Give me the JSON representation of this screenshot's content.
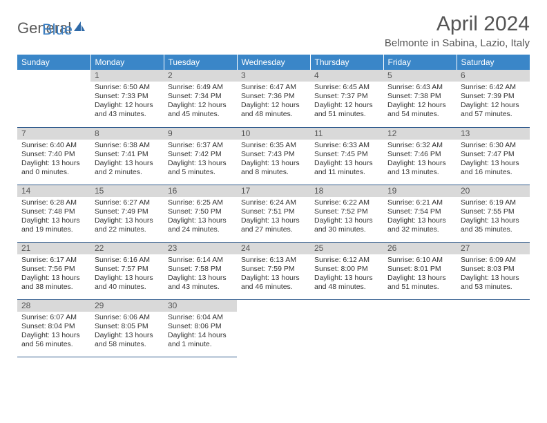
{
  "brand": {
    "text_general": "General",
    "text_blue": "Blue",
    "icon_fill": "#2f6aa8"
  },
  "header": {
    "month_title": "April 2024",
    "location": "Belmonte in Sabina, Lazio, Italy"
  },
  "colors": {
    "header_bg": "#3a86c8",
    "header_text": "#ffffff",
    "daynum_bg": "#d9d9d9",
    "daynum_text": "#555555",
    "cell_border": "#2f5a8c",
    "body_text": "#333333"
  },
  "weekdays": [
    "Sunday",
    "Monday",
    "Tuesday",
    "Wednesday",
    "Thursday",
    "Friday",
    "Saturday"
  ],
  "grid": {
    "leading_blanks": 1,
    "trailing_blanks": 4,
    "rows": 5,
    "cols": 7
  },
  "days": [
    {
      "n": "1",
      "sunrise": "6:50 AM",
      "sunset": "7:33 PM",
      "daylight": "12 hours and 43 minutes."
    },
    {
      "n": "2",
      "sunrise": "6:49 AM",
      "sunset": "7:34 PM",
      "daylight": "12 hours and 45 minutes."
    },
    {
      "n": "3",
      "sunrise": "6:47 AM",
      "sunset": "7:36 PM",
      "daylight": "12 hours and 48 minutes."
    },
    {
      "n": "4",
      "sunrise": "6:45 AM",
      "sunset": "7:37 PM",
      "daylight": "12 hours and 51 minutes."
    },
    {
      "n": "5",
      "sunrise": "6:43 AM",
      "sunset": "7:38 PM",
      "daylight": "12 hours and 54 minutes."
    },
    {
      "n": "6",
      "sunrise": "6:42 AM",
      "sunset": "7:39 PM",
      "daylight": "12 hours and 57 minutes."
    },
    {
      "n": "7",
      "sunrise": "6:40 AM",
      "sunset": "7:40 PM",
      "daylight": "13 hours and 0 minutes."
    },
    {
      "n": "8",
      "sunrise": "6:38 AM",
      "sunset": "7:41 PM",
      "daylight": "13 hours and 2 minutes."
    },
    {
      "n": "9",
      "sunrise": "6:37 AM",
      "sunset": "7:42 PM",
      "daylight": "13 hours and 5 minutes."
    },
    {
      "n": "10",
      "sunrise": "6:35 AM",
      "sunset": "7:43 PM",
      "daylight": "13 hours and 8 minutes."
    },
    {
      "n": "11",
      "sunrise": "6:33 AM",
      "sunset": "7:45 PM",
      "daylight": "13 hours and 11 minutes."
    },
    {
      "n": "12",
      "sunrise": "6:32 AM",
      "sunset": "7:46 PM",
      "daylight": "13 hours and 13 minutes."
    },
    {
      "n": "13",
      "sunrise": "6:30 AM",
      "sunset": "7:47 PM",
      "daylight": "13 hours and 16 minutes."
    },
    {
      "n": "14",
      "sunrise": "6:28 AM",
      "sunset": "7:48 PM",
      "daylight": "13 hours and 19 minutes."
    },
    {
      "n": "15",
      "sunrise": "6:27 AM",
      "sunset": "7:49 PM",
      "daylight": "13 hours and 22 minutes."
    },
    {
      "n": "16",
      "sunrise": "6:25 AM",
      "sunset": "7:50 PM",
      "daylight": "13 hours and 24 minutes."
    },
    {
      "n": "17",
      "sunrise": "6:24 AM",
      "sunset": "7:51 PM",
      "daylight": "13 hours and 27 minutes."
    },
    {
      "n": "18",
      "sunrise": "6:22 AM",
      "sunset": "7:52 PM",
      "daylight": "13 hours and 30 minutes."
    },
    {
      "n": "19",
      "sunrise": "6:21 AM",
      "sunset": "7:54 PM",
      "daylight": "13 hours and 32 minutes."
    },
    {
      "n": "20",
      "sunrise": "6:19 AM",
      "sunset": "7:55 PM",
      "daylight": "13 hours and 35 minutes."
    },
    {
      "n": "21",
      "sunrise": "6:17 AM",
      "sunset": "7:56 PM",
      "daylight": "13 hours and 38 minutes."
    },
    {
      "n": "22",
      "sunrise": "6:16 AM",
      "sunset": "7:57 PM",
      "daylight": "13 hours and 40 minutes."
    },
    {
      "n": "23",
      "sunrise": "6:14 AM",
      "sunset": "7:58 PM",
      "daylight": "13 hours and 43 minutes."
    },
    {
      "n": "24",
      "sunrise": "6:13 AM",
      "sunset": "7:59 PM",
      "daylight": "13 hours and 46 minutes."
    },
    {
      "n": "25",
      "sunrise": "6:12 AM",
      "sunset": "8:00 PM",
      "daylight": "13 hours and 48 minutes."
    },
    {
      "n": "26",
      "sunrise": "6:10 AM",
      "sunset": "8:01 PM",
      "daylight": "13 hours and 51 minutes."
    },
    {
      "n": "27",
      "sunrise": "6:09 AM",
      "sunset": "8:03 PM",
      "daylight": "13 hours and 53 minutes."
    },
    {
      "n": "28",
      "sunrise": "6:07 AM",
      "sunset": "8:04 PM",
      "daylight": "13 hours and 56 minutes."
    },
    {
      "n": "29",
      "sunrise": "6:06 AM",
      "sunset": "8:05 PM",
      "daylight": "13 hours and 58 minutes."
    },
    {
      "n": "30",
      "sunrise": "6:04 AM",
      "sunset": "8:06 PM",
      "daylight": "14 hours and 1 minute."
    }
  ],
  "labels": {
    "sunrise_prefix": "Sunrise: ",
    "sunset_prefix": "Sunset: ",
    "daylight_prefix": "Daylight: "
  }
}
